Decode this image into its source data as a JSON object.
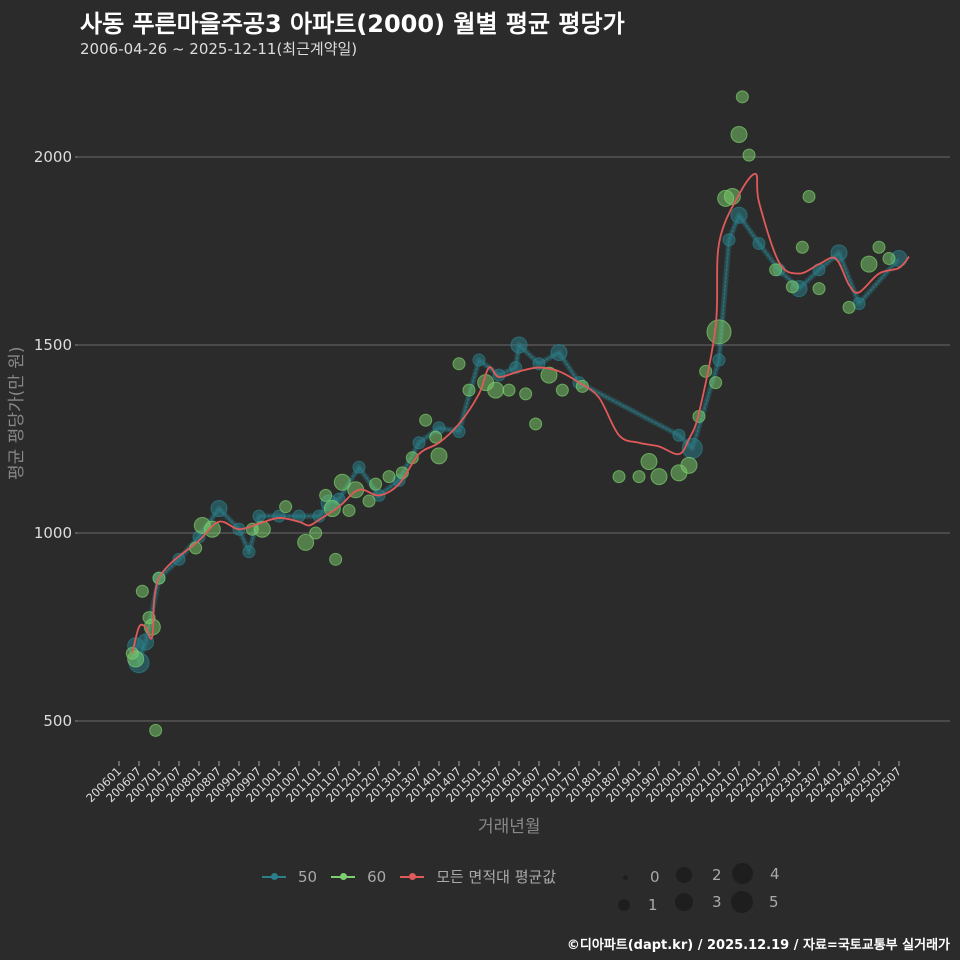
{
  "header": {
    "title": "사동 푸른마을주공3 아파트(2000) 월별 평균 평당가",
    "subtitle": "2006-04-26 ~ 2025-12-11(최근계약일)"
  },
  "axes": {
    "ylabel": "평균 평당가(만 원)",
    "xlabel": "거래년월"
  },
  "legend": {
    "series": [
      {
        "label": "50",
        "color": "#2a7f8a"
      },
      {
        "label": "60",
        "color": "#7ccf6c"
      },
      {
        "label": "모든 면적대 평균값",
        "color": "#e05a5a"
      }
    ],
    "sizes": [
      "0",
      "1",
      "2",
      "3",
      "4",
      "5"
    ]
  },
  "footer": "©디아파트(dapt.kr) / 2025.12.19 / 자료=국토교통부 실거래가",
  "chart_data": {
    "type": "scatter",
    "title": "사동 푸른마을주공3 아파트(2000) 월별 평균 평당가",
    "subtitle": "2006-04-26 ~ 2025-12-11(최근계약일)",
    "xlabel": "거래년월",
    "ylabel": "평균 평당가(만 원)",
    "ylim": [
      420,
      2230
    ],
    "yticks": [
      500,
      1000,
      1500,
      2000
    ],
    "grid": true,
    "legend_position": "bottom",
    "xticks": [
      "200601",
      "200607",
      "200701",
      "200707",
      "200801",
      "200807",
      "200901",
      "200907",
      "201001",
      "201007",
      "201101",
      "201107",
      "201201",
      "201207",
      "201301",
      "201307",
      "201401",
      "201407",
      "201501",
      "201507",
      "201601",
      "201607",
      "201701",
      "201707",
      "201801",
      "201807",
      "201901",
      "201907",
      "202001",
      "202007",
      "202101",
      "202107",
      "202201",
      "202207",
      "202301",
      "202307",
      "202401",
      "202407",
      "202501",
      "202507"
    ],
    "series": [
      {
        "name": "50",
        "color": "#2a7f8a",
        "points": [
          [
            "200606",
            700,
            3
          ],
          [
            "200607",
            655,
            4
          ],
          [
            "200609",
            710,
            3
          ],
          [
            "200701",
            880,
            2
          ],
          [
            "200707",
            930,
            2
          ],
          [
            "200801",
            990,
            2
          ],
          [
            "200807",
            1065,
            3
          ],
          [
            "200901",
            1010,
            2
          ],
          [
            "200904",
            950,
            2
          ],
          [
            "200907",
            1045,
            2
          ],
          [
            "201001",
            1045,
            2
          ],
          [
            "201007",
            1045,
            2
          ],
          [
            "201101",
            1045,
            2
          ],
          [
            "201104",
            1080,
            3
          ],
          [
            "201107",
            1090,
            2
          ],
          [
            "201201",
            1175,
            2
          ],
          [
            "201207",
            1100,
            2
          ],
          [
            "201301",
            1140,
            2
          ],
          [
            "201307",
            1240,
            2
          ],
          [
            "201401",
            1280,
            2
          ],
          [
            "201407",
            1270,
            2
          ],
          [
            "201501",
            1460,
            2
          ],
          [
            "201507",
            1420,
            2
          ],
          [
            "201512",
            1440,
            2
          ],
          [
            "201601",
            1500,
            3
          ],
          [
            "201607",
            1450,
            2
          ],
          [
            "201701",
            1480,
            3
          ],
          [
            "201707",
            1400,
            2
          ],
          [
            "202001",
            1260,
            2
          ],
          [
            "202005",
            1225,
            4
          ],
          [
            "202101",
            1460,
            2
          ],
          [
            "202104",
            1780,
            2
          ],
          [
            "202107",
            1845,
            3
          ],
          [
            "202201",
            1770,
            2
          ],
          [
            "202207",
            1700,
            2
          ],
          [
            "202301",
            1650,
            3
          ],
          [
            "202307",
            1700,
            2
          ],
          [
            "202401",
            1745,
            3
          ],
          [
            "202407",
            1610,
            2
          ],
          [
            "202507",
            1730,
            3
          ]
        ]
      },
      {
        "name": "60",
        "color": "#7ccf6c",
        "points": [
          [
            "200605",
            680,
            2
          ],
          [
            "200606",
            665,
            3
          ],
          [
            "200608",
            845,
            2
          ],
          [
            "200610",
            775,
            2
          ],
          [
            "200611",
            750,
            3
          ],
          [
            "200612",
            475,
            2
          ],
          [
            "200701",
            880,
            2
          ],
          [
            "200712",
            960,
            2
          ],
          [
            "200802",
            1020,
            3
          ],
          [
            "200805",
            1010,
            3
          ],
          [
            "200905",
            1010,
            2
          ],
          [
            "200908",
            1010,
            3
          ],
          [
            "201003",
            1070,
            2
          ],
          [
            "201009",
            975,
            3
          ],
          [
            "201012",
            1000,
            2
          ],
          [
            "201103",
            1100,
            2
          ],
          [
            "201105",
            1065,
            3
          ],
          [
            "201106",
            930,
            2
          ],
          [
            "201108",
            1135,
            3
          ],
          [
            "201110",
            1060,
            2
          ],
          [
            "201112",
            1115,
            3
          ],
          [
            "201204",
            1085,
            2
          ],
          [
            "201206",
            1130,
            2
          ],
          [
            "201210",
            1150,
            2
          ],
          [
            "201302",
            1160,
            2
          ],
          [
            "201305",
            1200,
            2
          ],
          [
            "201309",
            1300,
            2
          ],
          [
            "201312",
            1255,
            2
          ],
          [
            "201401",
            1205,
            3
          ],
          [
            "201407",
            1450,
            2
          ],
          [
            "201410",
            1380,
            2
          ],
          [
            "201503",
            1400,
            3
          ],
          [
            "201506",
            1380,
            3
          ],
          [
            "201510",
            1380,
            2
          ],
          [
            "201603",
            1370,
            2
          ],
          [
            "201606",
            1290,
            2
          ],
          [
            "201610",
            1420,
            3
          ],
          [
            "201702",
            1380,
            2
          ],
          [
            "201708",
            1390,
            2
          ],
          [
            "201807",
            1150,
            2
          ],
          [
            "201901",
            1150,
            2
          ],
          [
            "201904",
            1190,
            3
          ],
          [
            "201907",
            1150,
            3
          ],
          [
            "202001",
            1160,
            3
          ],
          [
            "202004",
            1180,
            3
          ],
          [
            "202007",
            1310,
            2
          ],
          [
            "202009",
            1430,
            2
          ],
          [
            "202012",
            1400,
            2
          ],
          [
            "202101",
            1535,
            5
          ],
          [
            "202103",
            1890,
            3
          ],
          [
            "202105",
            1895,
            3
          ],
          [
            "202107",
            2060,
            3
          ],
          [
            "202108",
            2160,
            2
          ],
          [
            "202110",
            2005,
            2
          ],
          [
            "202206",
            1700,
            2
          ],
          [
            "202211",
            1655,
            2
          ],
          [
            "202302",
            1760,
            2
          ],
          [
            "202304",
            1895,
            2
          ],
          [
            "202307",
            1650,
            2
          ],
          [
            "202404",
            1600,
            2
          ],
          [
            "202410",
            1715,
            3
          ],
          [
            "202501",
            1760,
            2
          ],
          [
            "202504",
            1730,
            2
          ]
        ]
      }
    ],
    "average_line": {
      "name": "모든 면적대 평균값",
      "color": "#e05a5a",
      "points": [
        [
          "200605",
          680
        ],
        [
          "200607",
          750
        ],
        [
          "200609",
          750
        ],
        [
          "200611",
          725
        ],
        [
          "200701",
          880
        ],
        [
          "200801",
          980
        ],
        [
          "200807",
          1030
        ],
        [
          "200901",
          1010
        ],
        [
          "200907",
          1025
        ],
        [
          "201001",
          1040
        ],
        [
          "201007",
          1030
        ],
        [
          "201010",
          1020
        ],
        [
          "201101",
          1035
        ],
        [
          "201107",
          1070
        ],
        [
          "201201",
          1115
        ],
        [
          "201207",
          1100
        ],
        [
          "201301",
          1130
        ],
        [
          "201307",
          1210
        ],
        [
          "201401",
          1240
        ],
        [
          "201407",
          1290
        ],
        [
          "201501",
          1370
        ],
        [
          "201504",
          1440
        ],
        [
          "201507",
          1415
        ],
        [
          "201601",
          1430
        ],
        [
          "201607",
          1440
        ],
        [
          "201701",
          1430
        ],
        [
          "201707",
          1400
        ],
        [
          "201801",
          1360
        ],
        [
          "201807",
          1260
        ],
        [
          "201901",
          1240
        ],
        [
          "201907",
          1230
        ],
        [
          "202001",
          1210
        ],
        [
          "202004",
          1250
        ],
        [
          "202007",
          1320
        ],
        [
          "202012",
          1550
        ],
        [
          "202101",
          1770
        ],
        [
          "202107",
          1900
        ],
        [
          "202112",
          1955
        ],
        [
          "202201",
          1880
        ],
        [
          "202207",
          1720
        ],
        [
          "202301",
          1690
        ],
        [
          "202307",
          1715
        ],
        [
          "202312",
          1730
        ],
        [
          "202404",
          1660
        ],
        [
          "202407",
          1640
        ],
        [
          "202501",
          1690
        ],
        [
          "202507",
          1705
        ],
        [
          "202510",
          1735
        ]
      ]
    }
  }
}
